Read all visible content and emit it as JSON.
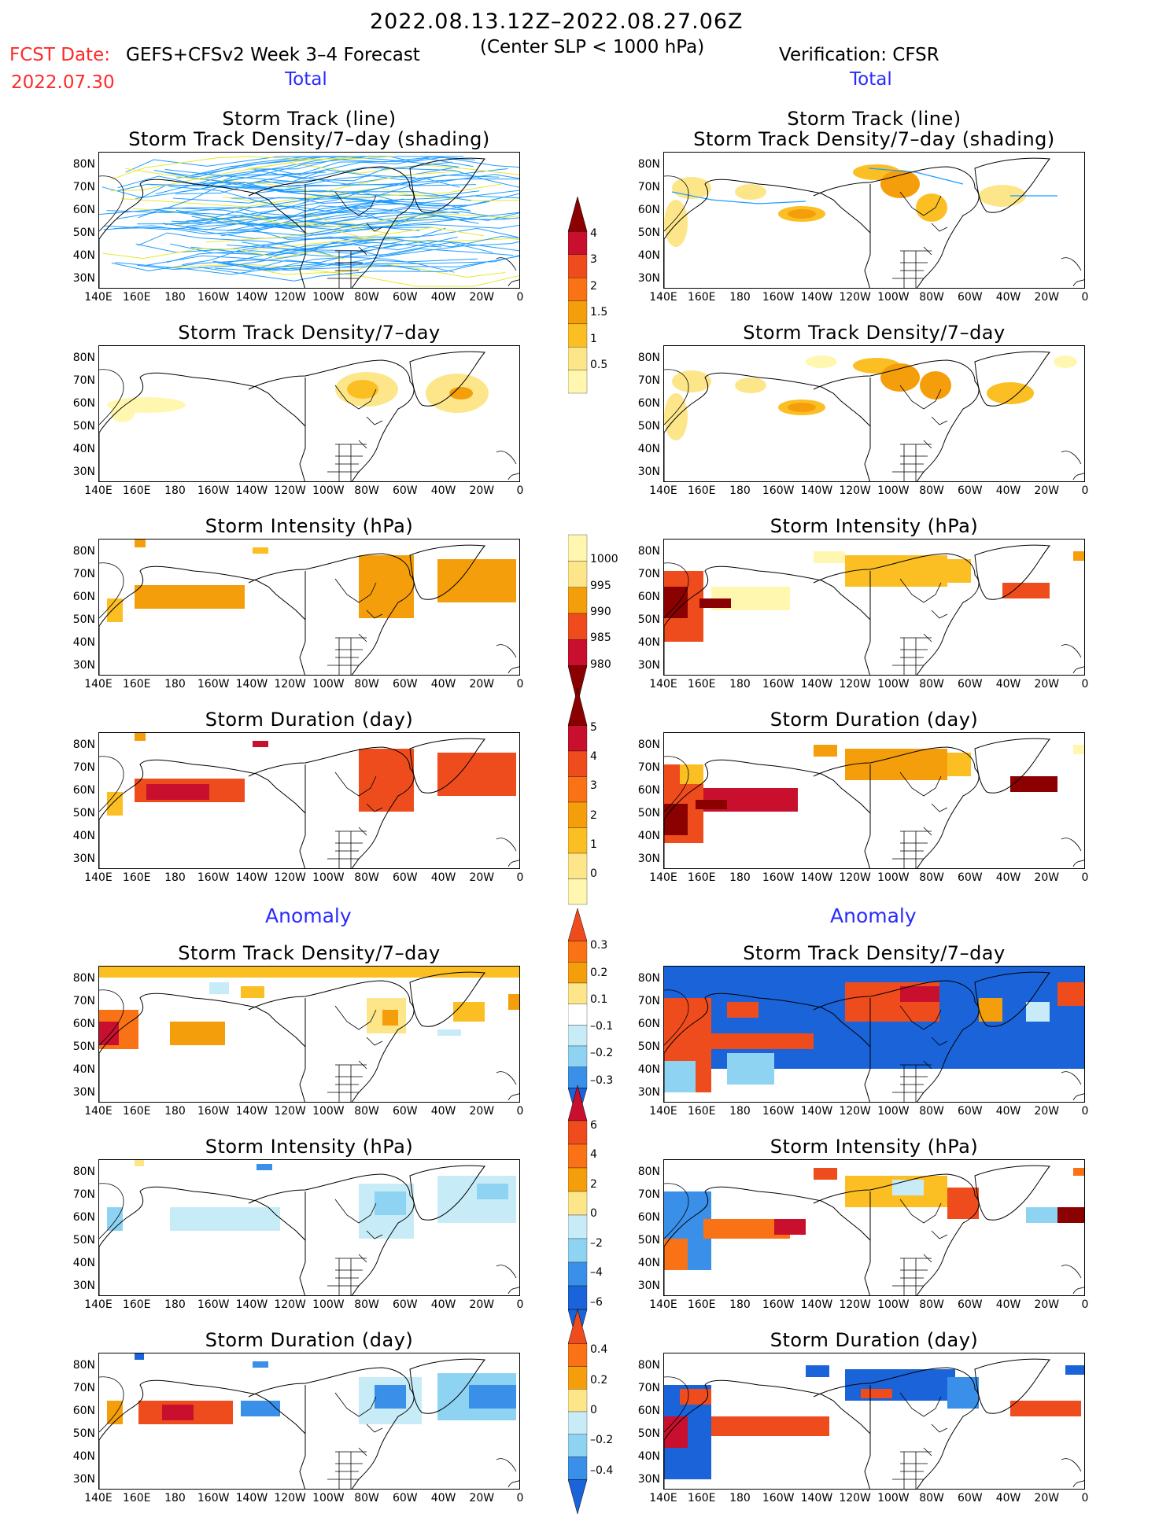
{
  "header": {
    "period": "2022.08.13.12Z–2022.08.27.06Z",
    "fcst_label": "FCST Date:",
    "fcst_date": "2022.07.30",
    "forecast_name": "GEFS+CFSv2 Week 3–4 Forecast",
    "criterion": "(Center SLP < 1000 hPa)",
    "verification": "Verification: CFSR",
    "total_left": "Total",
    "total_right": "Total",
    "anomaly_left": "Anomaly",
    "anomaly_right": "Anomaly"
  },
  "panel_titles": {
    "track_line": "Storm Track (line)",
    "track_shading": "Storm Track Density/7–day (shading)",
    "density": "Storm Track Density/7–day",
    "intensity": "Storm Intensity (hPa)",
    "duration": "Storm Duration (day)"
  },
  "axes": {
    "lat_labels": [
      "80N",
      "70N",
      "60N",
      "50N",
      "40N",
      "30N"
    ],
    "lon_labels": [
      "140E",
      "160E",
      "180",
      "160W",
      "140W",
      "120W",
      "100W",
      "80W",
      "60W",
      "40W",
      "20W",
      "0"
    ]
  },
  "colors": {
    "track_line": "#1e9bff",
    "track_line_alt": "#e8e830",
    "pos1": "#fff7b0",
    "pos2": "#fde68a",
    "pos3": "#fbbf24",
    "pos4": "#f59e0b",
    "pos5": "#f97316",
    "pos6": "#ef4c1e",
    "pos7": "#c8102e",
    "pos8": "#8b0000",
    "neg1": "#c7ecf7",
    "neg2": "#8fd3f3",
    "neg3": "#3a8fe8",
    "neg4": "#1a63d8"
  },
  "colorbars": [
    {
      "id": "density_total",
      "labels": [
        "4",
        "3",
        "2",
        "1.5",
        "1",
        "0.5"
      ]
    },
    {
      "id": "intensity_total",
      "labels": [
        "1000",
        "995",
        "990",
        "985",
        "980"
      ]
    },
    {
      "id": "duration_total",
      "labels": [
        "5",
        "4",
        "3",
        "2",
        "1",
        "0"
      ]
    },
    {
      "id": "density_anom",
      "labels": [
        "0.3",
        "0.2",
        "0.1",
        "–0.1",
        "–0.2",
        "–0.3"
      ]
    },
    {
      "id": "intensity_anom",
      "labels": [
        "6",
        "4",
        "2",
        "0",
        "–2",
        "–4",
        "–6"
      ]
    },
    {
      "id": "duration_anom",
      "labels": [
        "0.4",
        "0.2",
        "0",
        "–0.2",
        "–0.4"
      ]
    }
  ]
}
